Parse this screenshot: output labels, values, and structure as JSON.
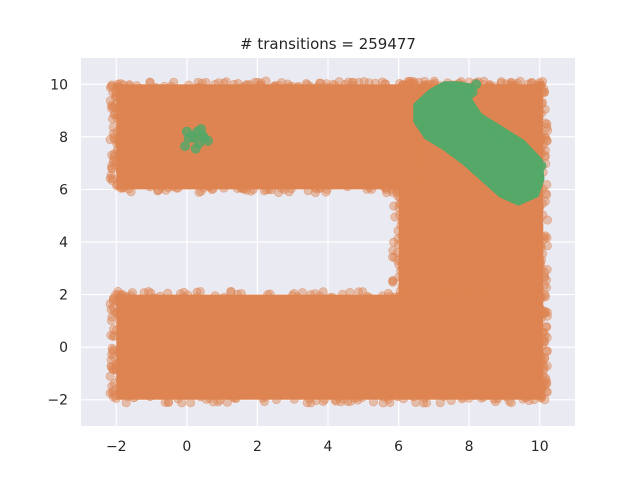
{
  "chart_data": {
    "type": "scatter",
    "title": "# transitions = 259477",
    "xlabel": "",
    "ylabel": "",
    "xlim": [
      -3,
      11
    ],
    "ylim": [
      -3,
      11
    ],
    "xticks": [
      -2,
      0,
      2,
      4,
      6,
      8,
      10
    ],
    "yticks": [
      -2,
      0,
      2,
      4,
      6,
      8,
      10
    ],
    "grid": true,
    "background_color": "#EAEAF2",
    "grid_color": "#FFFFFF",
    "series": [
      {
        "color": "#DD8452",
        "regions": [
          {
            "x": [
              -2.0,
              6.6
            ],
            "y": [
              6.0,
              10.0
            ]
          },
          {
            "x": [
              6.0,
              10.1
            ],
            "y": [
              2.0,
              10.0
            ]
          },
          {
            "x": [
              -2.0,
              10.1
            ],
            "y": [
              -2.0,
              2.0
            ]
          }
        ],
        "scattered_points": [
          [
            -2.0,
            9.6
          ],
          [
            -1.9,
            8.8
          ],
          [
            -1.95,
            6.2
          ],
          [
            -1.8,
            6.1
          ],
          [
            -1.6,
            9.4
          ],
          [
            -1.2,
            9.7
          ],
          [
            -0.8,
            6.0
          ],
          [
            -1.9,
            1.7
          ],
          [
            -2.0,
            -0.8
          ],
          [
            -1.9,
            -1.7
          ],
          [
            -1.7,
            1.9
          ],
          [
            -1.5,
            -1.9
          ],
          [
            10.0,
            -1.5
          ],
          [
            10.1,
            1.3
          ],
          [
            9.6,
            -1.9
          ],
          [
            -1.95,
            7.5
          ],
          [
            -1.7,
            8.3
          ],
          [
            -1.85,
            0.6
          ]
        ]
      },
      {
        "color": "#55A868",
        "blob_outline": [
          [
            6.5,
            9.2
          ],
          [
            6.9,
            9.7
          ],
          [
            7.3,
            10.0
          ],
          [
            7.7,
            10.0
          ],
          [
            8.1,
            9.9
          ],
          [
            8.0,
            9.4
          ],
          [
            8.3,
            8.8
          ],
          [
            8.9,
            8.3
          ],
          [
            9.5,
            7.8
          ],
          [
            10.0,
            7.1
          ],
          [
            10.05,
            6.4
          ],
          [
            9.9,
            5.8
          ],
          [
            9.4,
            5.5
          ],
          [
            8.9,
            5.8
          ],
          [
            8.4,
            6.4
          ],
          [
            7.9,
            7.0
          ],
          [
            7.3,
            7.6
          ],
          [
            6.8,
            8.0
          ],
          [
            6.5,
            8.6
          ]
        ],
        "extra_points": [
          [
            8.1,
            9.7
          ],
          [
            8.2,
            10.0
          ],
          [
            7.9,
            9.6
          ],
          [
            8.6,
            8.2
          ],
          [
            8.9,
            7.9
          ],
          [
            9.3,
            7.5
          ],
          [
            9.6,
            7.3
          ],
          [
            9.9,
            7.0
          ],
          [
            10.05,
            6.9
          ],
          [
            7.5,
            9.8
          ]
        ],
        "cluster_points": [
          [
            0.0,
            8.2
          ],
          [
            0.15,
            8.05
          ],
          [
            0.3,
            8.2
          ],
          [
            0.45,
            8.05
          ],
          [
            0.4,
            8.3
          ],
          [
            0.6,
            7.85
          ],
          [
            0.35,
            7.75
          ],
          [
            0.2,
            7.95
          ],
          [
            0.5,
            7.95
          ],
          [
            0.05,
            7.95
          ],
          [
            -0.05,
            7.65
          ],
          [
            0.25,
            7.55
          ]
        ]
      }
    ]
  }
}
